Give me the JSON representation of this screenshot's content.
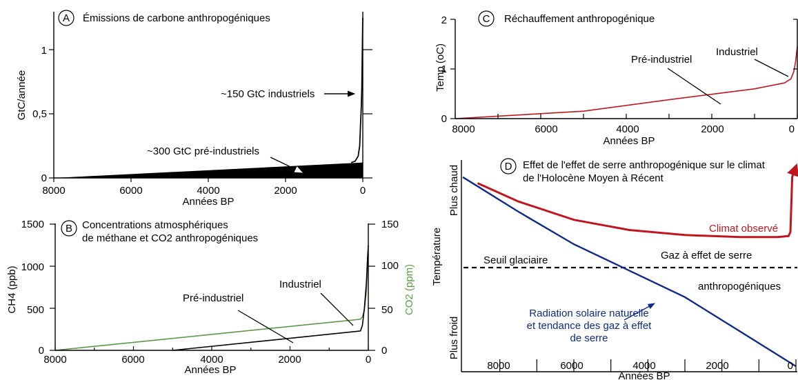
{
  "chart_data": [
    {
      "panel": "A",
      "type": "area",
      "title": "Émissions de carbone anthropogéniques",
      "xlabel": "Années BP",
      "ylabel": "GtC/année",
      "xlim": [
        8000,
        0
      ],
      "ylim": [
        0,
        1.3
      ],
      "xticks": [
        "8000",
        "6000",
        "4000",
        "2000",
        "0"
      ],
      "yticks": [
        "0",
        "0,5",
        "1"
      ],
      "wedge": {
        "x": [
          8000,
          0
        ],
        "upper": [
          0,
          0.12
        ]
      },
      "series": [
        {
          "x": [
            300,
            200,
            120,
            80,
            60,
            40,
            25,
            15,
            5,
            0
          ],
          "y": [
            0.12,
            0.13,
            0.17,
            0.25,
            0.4,
            0.55,
            0.7,
            0.95,
            1.15,
            1.25
          ]
        }
      ],
      "annotations": [
        "~150 GtC industriels",
        "~300 GtC pré-industriels"
      ],
      "colors": {
        "fill": "#000000",
        "line": "#000000"
      }
    },
    {
      "panel": "B",
      "type": "line",
      "title": "Concentrations atmosphériques",
      "title_line2": "de méthane et CO2 anthropogéniques",
      "xlabel": "Années BP",
      "ylabel_left": "CH4 (ppb)",
      "ylabel_right": "CO2 (ppm)",
      "xlim": [
        8000,
        0
      ],
      "ylim_left": [
        0,
        1500
      ],
      "ylim_right": [
        0,
        150
      ],
      "xticks": [
        "8000",
        "6000",
        "4000",
        "2000",
        "0"
      ],
      "yticks_left": [
        "0",
        "500",
        "1000",
        "1500"
      ],
      "yticks_right": [
        "0",
        "50",
        "100",
        "150"
      ],
      "series": [
        {
          "name": "CH4",
          "x": [
            5000,
            200,
            150,
            100,
            50,
            20,
            0
          ],
          "y": [
            0,
            230,
            300,
            500,
            800,
            1100,
            1250
          ],
          "color": "#000000"
        },
        {
          "name": "CO2",
          "x": [
            8000,
            200,
            150,
            100,
            50,
            20,
            0
          ],
          "y": [
            0,
            37,
            40,
            48,
            70,
            100,
            115
          ],
          "color": "#5a9a46"
        }
      ],
      "annotations": [
        "Pré-industriel",
        "Industriel"
      ]
    },
    {
      "panel": "C",
      "type": "line",
      "title": "Réchauffement anthropogénique",
      "xlabel": "Années BP",
      "ylabel": "Temp (oC)",
      "xlim": [
        8000,
        0
      ],
      "ylim": [
        0,
        2
      ],
      "xticks": [
        "8000",
        "6000",
        "4000",
        "2000",
        "0"
      ],
      "yticks": [
        "0",
        "1",
        "2"
      ],
      "series": [
        {
          "x": [
            8000,
            5000,
            3000,
            1000,
            300,
            150,
            80,
            40,
            0
          ],
          "y": [
            0,
            0.15,
            0.38,
            0.6,
            0.72,
            0.8,
            0.95,
            1.15,
            1.45
          ],
          "color": "#c0161e"
        }
      ],
      "annotations": [
        "Pré-industriel",
        "Industriel"
      ]
    },
    {
      "panel": "D",
      "type": "line",
      "title": "Effet de l'effet de serre anthropogénique sur le climat",
      "title_line2": "de l'Holocène Moyen à Récent",
      "xlabel": "Années BP",
      "ylabel": "Température",
      "ylabel_top": "Plus chaud",
      "ylabel_bottom": "Plus froid",
      "xlim": [
        9000,
        0
      ],
      "ylim": [
        0,
        1
      ],
      "xticks": [
        "8000",
        "6000",
        "4000",
        "2000",
        "0"
      ],
      "threshold": {
        "label": "Seuil glaciaire",
        "y": 0.5
      },
      "series": [
        {
          "name": "Climat observé",
          "x": [
            8600,
            7500,
            6000,
            4500,
            3000,
            1500,
            500,
            200,
            150,
            100,
            0
          ],
          "y": [
            0.92,
            0.83,
            0.74,
            0.69,
            0.665,
            0.655,
            0.655,
            0.66,
            0.68,
            0.95,
            1.0
          ],
          "color": "#c0161e"
        },
        {
          "name": "Radiation solaire naturelle et tendance des gaz à effet de serre",
          "x": [
            9000,
            7500,
            6000,
            4500,
            3000,
            1500,
            0
          ],
          "y": [
            0.95,
            0.78,
            0.62,
            0.49,
            0.36,
            0.19,
            0.02
          ],
          "color": "#0d2a8c"
        }
      ],
      "labels": {
        "observed": "Climat observé",
        "ghg_line1": "Gaz à effet de serre",
        "ghg_line2": "anthropogéniques",
        "natural_line1": "Radiation solaire naturelle",
        "natural_line2": "et tendance des gaz à effet",
        "natural_line3": "de serre"
      }
    }
  ]
}
